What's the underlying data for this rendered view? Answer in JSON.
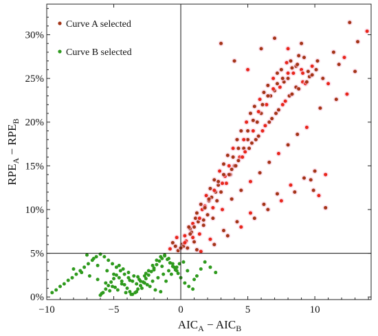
{
  "chart_data": {
    "type": "scatter",
    "title": "",
    "xlabel": "AIC",
    "xlabel_sub_a": "A",
    "xlabel_minus": " − AIC",
    "xlabel_sub_b": "B",
    "ylabel": "RPE",
    "ylabel_sub_a": "A",
    "ylabel_minus": " − RPE",
    "ylabel_sub_b": "B",
    "xlim": [
      -10,
      14.2
    ],
    "ylim": [
      -0.3,
      33.5
    ],
    "x_ticks": [
      -10,
      -5,
      0,
      5,
      10
    ],
    "x_tick_labels": [
      "−10",
      "−5",
      "0",
      "5",
      "10"
    ],
    "y_ticks": [
      0,
      5,
      10,
      15,
      20,
      25,
      30
    ],
    "y_tick_labels": [
      "0%",
      "5%",
      "10%",
      "15%",
      "20%",
      "25%",
      "30%"
    ],
    "reference_lines": {
      "x": 0,
      "y": 5
    },
    "grid": false,
    "legend_position": "top-left",
    "legend": [
      {
        "name": "Curve A selected",
        "color": "#a33416"
      },
      {
        "name": "Curve B selected",
        "color": "#2e9a1d"
      }
    ],
    "series": [
      {
        "name": "Curve A selected",
        "color": "#a33416",
        "highlight_color": "#e8251a",
        "x": [
          -0.8,
          -0.6,
          -0.4,
          -0.3,
          -0.2,
          0.1,
          0.3,
          0.5,
          0.7,
          0.9,
          1.0,
          1.2,
          1.4,
          1.5,
          1.7,
          1.9,
          2.0,
          2.2,
          2.4,
          2.5,
          2.7,
          2.9,
          3.0,
          3.2,
          3.4,
          3.5,
          3.7,
          3.9,
          4.0,
          4.2,
          4.4,
          4.5,
          4.7,
          4.9,
          5.0,
          5.2,
          5.4,
          5.5,
          5.7,
          5.9,
          6.0,
          6.2,
          6.4,
          6.5,
          6.7,
          6.9,
          7.0,
          7.2,
          7.4,
          7.5,
          7.7,
          7.9,
          8.0,
          8.2,
          8.4,
          8.6,
          8.8,
          9.0,
          9.2,
          9.5,
          9.8,
          10.2,
          10.6,
          11.0,
          11.4,
          11.8,
          12.2,
          12.6,
          13.2,
          13.9,
          0.6,
          1.1,
          1.6,
          2.1,
          2.6,
          3.1,
          3.6,
          4.1,
          4.6,
          5.1,
          5.6,
          6.1,
          6.6,
          7.1,
          7.6,
          8.1,
          8.6,
          9.1,
          9.6,
          10.1,
          0.4,
          0.8,
          1.3,
          1.8,
          2.3,
          2.8,
          3.3,
          3.8,
          4.3,
          4.8,
          5.3,
          5.8,
          6.3,
          6.8,
          7.3,
          7.8,
          8.3,
          8.8,
          9.3,
          9.8,
          0.2,
          0.9,
          1.7,
          2.4,
          3.1,
          3.8,
          4.5,
          5.2,
          5.9,
          6.6,
          7.3,
          8.0,
          8.7,
          9.4,
          10.4,
          11.6,
          12.4,
          13.0,
          1.2,
          2.2,
          3.2,
          4.2,
          5.2,
          6.2,
          7.2,
          8.2,
          9.2,
          10.0,
          1.5,
          2.5,
          3.5,
          4.5,
          5.5,
          6.5,
          7.5,
          8.5,
          9.7,
          10.8,
          3.0,
          4.0,
          5.0,
          6.0,
          7.0,
          8.0,
          9.0,
          0.0,
          0.3,
          0.7,
          1.0,
          1.4,
          1.8,
          2.1,
          2.5,
          2.8,
          3.2,
          3.6,
          3.9,
          4.3,
          4.7,
          5.0,
          5.4,
          5.8,
          6.1,
          6.5,
          6.9,
          7.2,
          7.6,
          8.0,
          8.3,
          8.7,
          9.1,
          9.4,
          9.9,
          10.3,
          10.8
        ],
        "y": [
          5.5,
          6.2,
          5.8,
          6.8,
          5.3,
          6.0,
          7.0,
          5.6,
          7.8,
          8.4,
          6.3,
          9.6,
          7.2,
          10.6,
          8.8,
          11.6,
          9.4,
          12.4,
          10.2,
          13.4,
          11.0,
          14.4,
          12.0,
          15.2,
          13.0,
          16.2,
          14.0,
          17.0,
          15.0,
          18.0,
          16.0,
          19.0,
          17.0,
          20.0,
          18.0,
          21.0,
          19.0,
          21.8,
          20.0,
          22.6,
          21.0,
          23.4,
          22.0,
          24.2,
          23.0,
          25.0,
          23.6,
          25.6,
          24.0,
          26.0,
          24.6,
          26.8,
          25.0,
          27.0,
          25.6,
          26.4,
          27.6,
          26.0,
          27.4,
          25.8,
          26.4,
          27.0,
          25.0,
          24.4,
          28.0,
          26.6,
          27.4,
          31.4,
          29.2,
          30.4,
          8.0,
          9.0,
          10.0,
          11.0,
          12.0,
          13.0,
          14.0,
          15.0,
          16.0,
          17.0,
          18.0,
          19.0,
          20.0,
          21.0,
          22.0,
          23.0,
          24.0,
          24.6,
          25.2,
          26.0,
          6.4,
          7.4,
          8.6,
          10.4,
          11.4,
          12.8,
          13.8,
          14.6,
          15.6,
          16.6,
          17.6,
          18.4,
          19.6,
          20.4,
          21.4,
          22.4,
          23.2,
          23.8,
          24.4,
          25.4,
          5.8,
          6.8,
          8.2,
          9.0,
          10.0,
          11.2,
          12.2,
          13.2,
          14.2,
          15.4,
          16.4,
          17.4,
          18.6,
          19.4,
          21.6,
          22.6,
          23.2,
          25.8,
          5.4,
          6.6,
          7.6,
          8.6,
          9.6,
          10.6,
          11.8,
          12.8,
          13.6,
          14.4,
          5.2,
          6.0,
          7.0,
          8.0,
          9.0,
          10.0,
          11.0,
          12.0,
          13.4,
          14.0,
          29.0,
          27.0,
          26.0,
          28.4,
          29.6,
          28.4,
          29.0,
          5.6,
          6.2,
          7.2,
          8.0,
          9.0,
          10.2,
          11.2,
          12.2,
          13.2,
          14.0,
          15.0,
          16.0,
          17.0,
          18.0,
          19.0,
          20.2,
          21.2,
          22.0,
          23.0,
          23.8,
          24.4,
          25.0,
          25.6,
          26.2,
          26.6,
          25.6,
          24.6,
          12.2,
          11.6,
          10.2
        ]
      },
      {
        "name": "Curve B selected",
        "color": "#2e9a1d",
        "highlight_color": "#2e9a1d",
        "x": [
          -9.6,
          -9.3,
          -9.0,
          -8.7,
          -8.4,
          -8.1,
          -7.8,
          -7.5,
          -7.2,
          -6.9,
          -6.6,
          -6.3,
          -6.0,
          -5.7,
          -5.4,
          -5.1,
          -4.8,
          -4.5,
          -4.2,
          -3.9,
          -3.6,
          -3.3,
          -3.0,
          -2.7,
          -2.4,
          -2.1,
          -1.8,
          -1.5,
          -1.2,
          -0.9,
          -0.6,
          -0.3,
          0.0,
          0.3,
          0.6,
          0.9,
          1.2,
          1.5,
          1.8,
          2.2,
          2.6,
          -6.0,
          -5.8,
          -5.6,
          -5.4,
          -5.2,
          -5.0,
          -4.8,
          -4.6,
          -4.4,
          -4.2,
          -4.0,
          -3.8,
          -3.6,
          -3.4,
          -3.2,
          -3.0,
          -2.8,
          -2.6,
          -2.4,
          -2.2,
          -2.0,
          -1.8,
          -1.6,
          -1.4,
          -1.2,
          -1.0,
          -0.8,
          -0.6,
          -0.4,
          -0.2,
          -7.0,
          -6.5,
          -6.2,
          -5.5,
          -5.0,
          -4.6,
          -4.3,
          -3.9,
          -3.5,
          -3.1,
          -2.7,
          -2.3,
          -1.9,
          -1.5,
          -1.1,
          -0.7,
          -0.3,
          0.2,
          0.5,
          1.0,
          -8.0,
          -7.4,
          -6.8,
          -6.2,
          -5.6,
          -5.1,
          -4.7,
          -4.1,
          -3.7,
          -3.3,
          -2.9,
          -2.5,
          -2.1,
          -1.7,
          -1.3,
          -0.9,
          -0.5,
          -0.1,
          -5.9,
          -5.3,
          -4.9,
          -4.4,
          -3.8,
          -3.2,
          -2.6,
          -2.0,
          -1.4,
          -0.8
        ],
        "y": [
          0.5,
          0.8,
          1.2,
          1.5,
          1.9,
          2.2,
          2.6,
          3.0,
          3.4,
          3.8,
          4.2,
          4.6,
          4.9,
          4.6,
          4.2,
          3.8,
          3.4,
          3.0,
          2.6,
          2.2,
          1.8,
          1.5,
          1.8,
          2.4,
          3.0,
          3.6,
          4.2,
          4.6,
          4.8,
          4.4,
          3.8,
          3.0,
          2.2,
          1.6,
          1.2,
          0.9,
          2.4,
          3.2,
          4.0,
          3.4,
          2.8,
          0.2,
          0.5,
          0.9,
          1.3,
          1.7,
          2.1,
          2.5,
          2.2,
          1.8,
          1.4,
          1.0,
          0.6,
          0.3,
          0.5,
          0.9,
          1.3,
          1.7,
          2.1,
          2.5,
          2.9,
          3.3,
          3.7,
          4.1,
          4.4,
          4.7,
          4.3,
          3.9,
          3.5,
          3.1,
          2.7,
          4.8,
          4.4,
          3.6,
          3.0,
          2.6,
          3.6,
          3.2,
          2.8,
          2.4,
          2.0,
          1.6,
          1.2,
          0.8,
          0.6,
          1.8,
          2.6,
          3.4,
          4.0,
          3.0,
          2.0,
          3.2,
          2.8,
          2.4,
          2.0,
          1.6,
          1.2,
          0.8,
          0.5,
          0.3,
          0.6,
          1.0,
          1.4,
          1.8,
          2.2,
          2.6,
          3.0,
          3.4,
          3.8,
          0.4,
          0.7,
          1.1,
          1.5,
          1.9,
          2.3,
          2.7,
          3.1,
          3.5,
          3.9
        ]
      }
    ]
  }
}
